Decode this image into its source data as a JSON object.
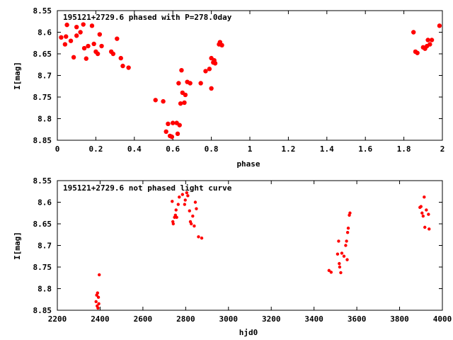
{
  "chart_data": [
    {
      "type": "scatter",
      "title": "195121+2729.6 phased with P=278.0day",
      "xlabel": "phase",
      "ylabel": "I[mag]",
      "xlim": [
        0,
        2
      ],
      "ylim": [
        8.85,
        8.55
      ],
      "y_inverted": true,
      "xticks": [
        0,
        0.2,
        0.4,
        0.6,
        0.8,
        1,
        1.2,
        1.4,
        1.6,
        1.8,
        2
      ],
      "xtick_labels": [
        "0",
        "0.2",
        "0.4",
        "0.6",
        "0.8",
        "1",
        "1.2",
        "1.4",
        "1.6",
        "1.8",
        "2"
      ],
      "yticks": [
        8.55,
        8.6,
        8.65,
        8.7,
        8.75,
        8.8,
        8.85
      ],
      "ytick_labels": [
        "8.55",
        "8.6",
        "8.65",
        "8.7",
        "8.75",
        "8.8",
        "8.85"
      ],
      "marker": "filled-circle",
      "color": "#ff0000",
      "points": [
        [
          0.02,
          8.612
        ],
        [
          0.04,
          8.628
        ],
        [
          0.045,
          8.61
        ],
        [
          0.05,
          8.583
        ],
        [
          0.07,
          8.62
        ],
        [
          0.085,
          8.658
        ],
        [
          0.1,
          8.608
        ],
        [
          0.1,
          8.588
        ],
        [
          0.12,
          8.6
        ],
        [
          0.135,
          8.582
        ],
        [
          0.14,
          8.637
        ],
        [
          0.15,
          8.661
        ],
        [
          0.16,
          8.632
        ],
        [
          0.18,
          8.585
        ],
        [
          0.19,
          8.627
        ],
        [
          0.2,
          8.645
        ],
        [
          0.21,
          8.65
        ],
        [
          0.22,
          8.605
        ],
        [
          0.23,
          8.632
        ],
        [
          0.28,
          8.645
        ],
        [
          0.29,
          8.65
        ],
        [
          0.31,
          8.615
        ],
        [
          0.33,
          8.66
        ],
        [
          0.34,
          8.678
        ],
        [
          0.37,
          8.682
        ],
        [
          0.51,
          8.757
        ],
        [
          0.55,
          8.76
        ],
        [
          0.565,
          8.83
        ],
        [
          0.575,
          8.812
        ],
        [
          0.585,
          8.84
        ],
        [
          0.595,
          8.842
        ],
        [
          0.6,
          8.81
        ],
        [
          0.62,
          8.81
        ],
        [
          0.625,
          8.835
        ],
        [
          0.63,
          8.718
        ],
        [
          0.635,
          8.815
        ],
        [
          0.64,
          8.765
        ],
        [
          0.645,
          8.688
        ],
        [
          0.65,
          8.74
        ],
        [
          0.66,
          8.763
        ],
        [
          0.665,
          8.745
        ],
        [
          0.675,
          8.715
        ],
        [
          0.69,
          8.718
        ],
        [
          0.745,
          8.718
        ],
        [
          0.77,
          8.69
        ],
        [
          0.79,
          8.685
        ],
        [
          0.8,
          8.73
        ],
        [
          0.8,
          8.66
        ],
        [
          0.81,
          8.67
        ],
        [
          0.815,
          8.665
        ],
        [
          0.82,
          8.672
        ],
        [
          0.84,
          8.628
        ],
        [
          0.845,
          8.623
        ],
        [
          0.855,
          8.63
        ],
        [
          1.85,
          8.6
        ],
        [
          1.86,
          8.645
        ],
        [
          1.87,
          8.648
        ],
        [
          1.9,
          8.635
        ],
        [
          1.91,
          8.638
        ],
        [
          1.92,
          8.632
        ],
        [
          1.925,
          8.618
        ],
        [
          1.935,
          8.628
        ],
        [
          1.945,
          8.618
        ],
        [
          1.985,
          8.585
        ]
      ]
    },
    {
      "type": "scatter",
      "title": "195121+2729.6 not phased light curve",
      "xlabel": "hjd0",
      "ylabel": "I[mag]",
      "xlim": [
        2200,
        4000
      ],
      "ylim": [
        8.85,
        8.55
      ],
      "y_inverted": true,
      "xticks": [
        2200,
        2400,
        2600,
        2800,
        3000,
        3200,
        3400,
        3600,
        3800,
        4000
      ],
      "xtick_labels": [
        "2200",
        "2400",
        "2600",
        "2800",
        "3000",
        "3200",
        "3400",
        "3600",
        "3800",
        "4000"
      ],
      "yticks": [
        8.55,
        8.6,
        8.65,
        8.7,
        8.75,
        8.8,
        8.85
      ],
      "ytick_labels": [
        "8.55",
        "8.6",
        "8.65",
        "8.7",
        "8.75",
        "8.8",
        "8.85"
      ],
      "marker": "filled-circle",
      "color": "#ff0000",
      "points": [
        [
          2381,
          8.83
        ],
        [
          2384,
          8.815
        ],
        [
          2386,
          8.84
        ],
        [
          2388,
          8.81
        ],
        [
          2390,
          8.845
        ],
        [
          2392,
          8.82
        ],
        [
          2394,
          8.835
        ],
        [
          2396,
          8.768
        ],
        [
          2737,
          8.598
        ],
        [
          2740,
          8.645
        ],
        [
          2742,
          8.65
        ],
        [
          2748,
          8.635
        ],
        [
          2752,
          8.63
        ],
        [
          2755,
          8.618
        ],
        [
          2758,
          8.635
        ],
        [
          2765,
          8.605
        ],
        [
          2770,
          8.588
        ],
        [
          2785,
          8.582
        ],
        [
          2795,
          8.605
        ],
        [
          2798,
          8.595
        ],
        [
          2805,
          8.578
        ],
        [
          2810,
          8.585
        ],
        [
          2818,
          8.62
        ],
        [
          2822,
          8.645
        ],
        [
          2826,
          8.65
        ],
        [
          2833,
          8.632
        ],
        [
          2840,
          8.655
        ],
        [
          2845,
          8.6
        ],
        [
          2850,
          8.615
        ],
        [
          2860,
          8.68
        ],
        [
          2875,
          8.683
        ],
        [
          3470,
          8.758
        ],
        [
          3480,
          8.762
        ],
        [
          3510,
          8.72
        ],
        [
          3515,
          8.69
        ],
        [
          3518,
          8.742
        ],
        [
          3520,
          8.75
        ],
        [
          3525,
          8.763
        ],
        [
          3530,
          8.718
        ],
        [
          3540,
          8.725
        ],
        [
          3548,
          8.7
        ],
        [
          3552,
          8.69
        ],
        [
          3555,
          8.733
        ],
        [
          3557,
          8.67
        ],
        [
          3560,
          8.66
        ],
        [
          3565,
          8.63
        ],
        [
          3568,
          8.625
        ],
        [
          3895,
          8.612
        ],
        [
          3900,
          8.61
        ],
        [
          3905,
          8.625
        ],
        [
          3910,
          8.632
        ],
        [
          3915,
          8.588
        ],
        [
          3918,
          8.658
        ],
        [
          3925,
          8.618
        ],
        [
          3935,
          8.628
        ],
        [
          3938,
          8.662
        ]
      ]
    }
  ]
}
